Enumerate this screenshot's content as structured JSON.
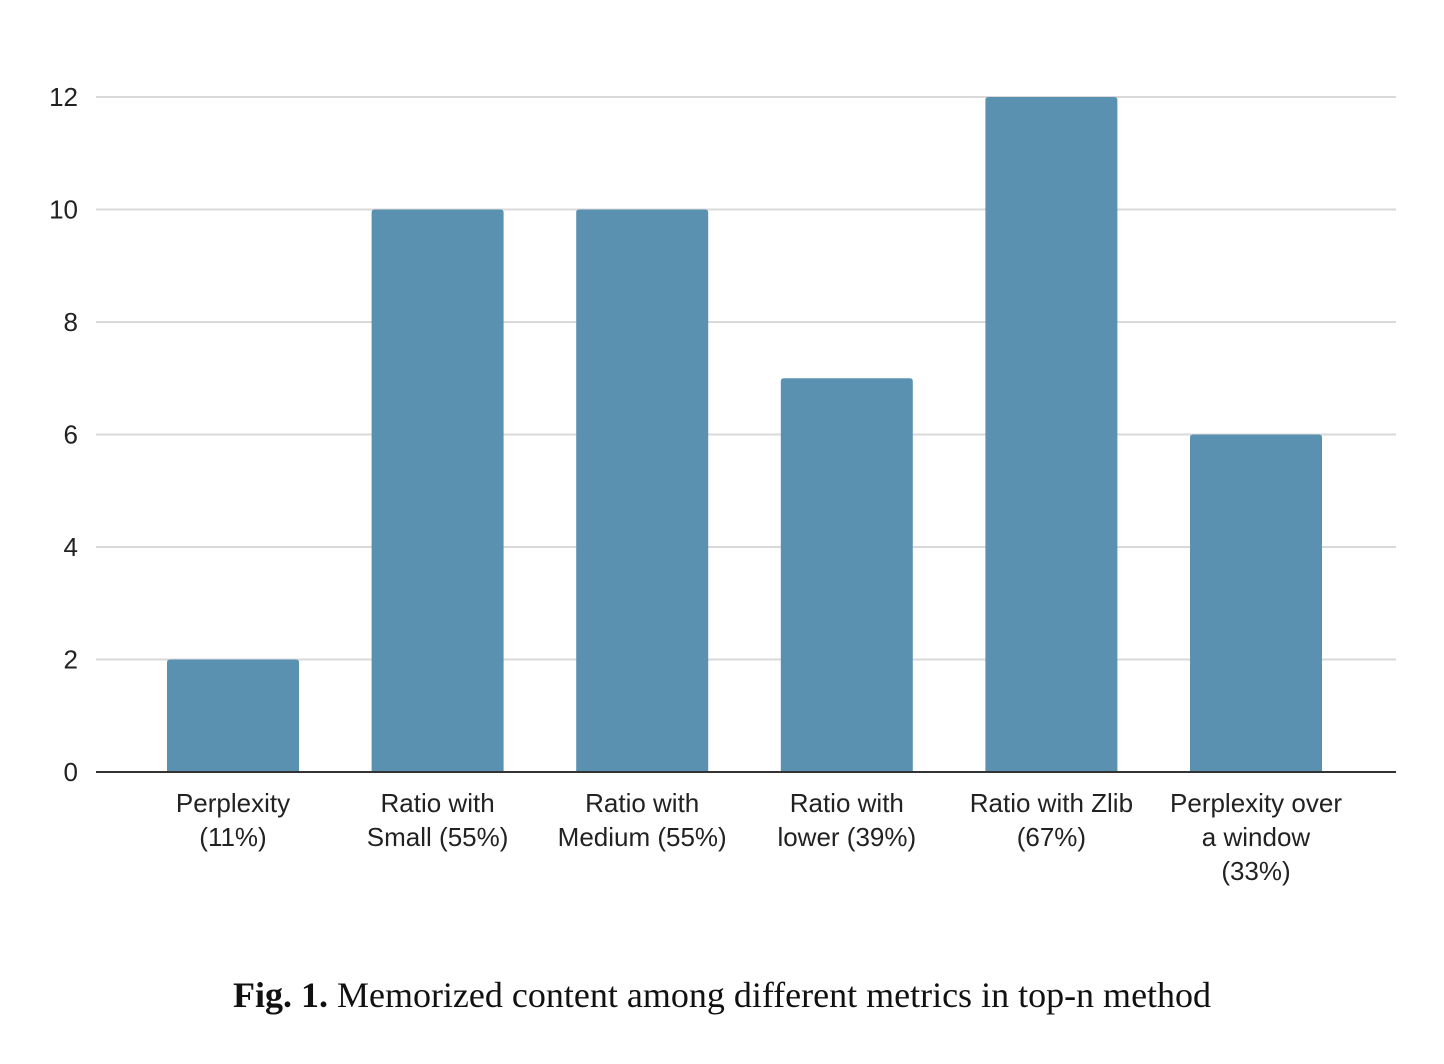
{
  "caption": {
    "label": "Fig. 1.",
    "text": "Memorized content among different metrics in top-n method"
  },
  "colors": {
    "bar": "#5b91b0",
    "grid": "#d9d9d9",
    "axis": "#333333"
  },
  "chart_data": {
    "type": "bar",
    "categories": [
      [
        "Perplexity",
        "(11%)"
      ],
      [
        "Ratio with",
        "Small (55%)"
      ],
      [
        "Ratio with",
        "Medium (55%)"
      ],
      [
        "Ratio with",
        "lower (39%)"
      ],
      [
        "Ratio with Zlib",
        "(67%)"
      ],
      [
        "Perplexity over",
        "a window",
        "(33%)"
      ]
    ],
    "values": [
      2,
      10,
      10,
      7,
      12,
      6
    ],
    "title": "",
    "xlabel": "",
    "ylabel": "",
    "ylim": [
      0,
      12
    ],
    "yticks": [
      0,
      2,
      4,
      6,
      8,
      10,
      12
    ],
    "grid": true,
    "legend": "none"
  }
}
